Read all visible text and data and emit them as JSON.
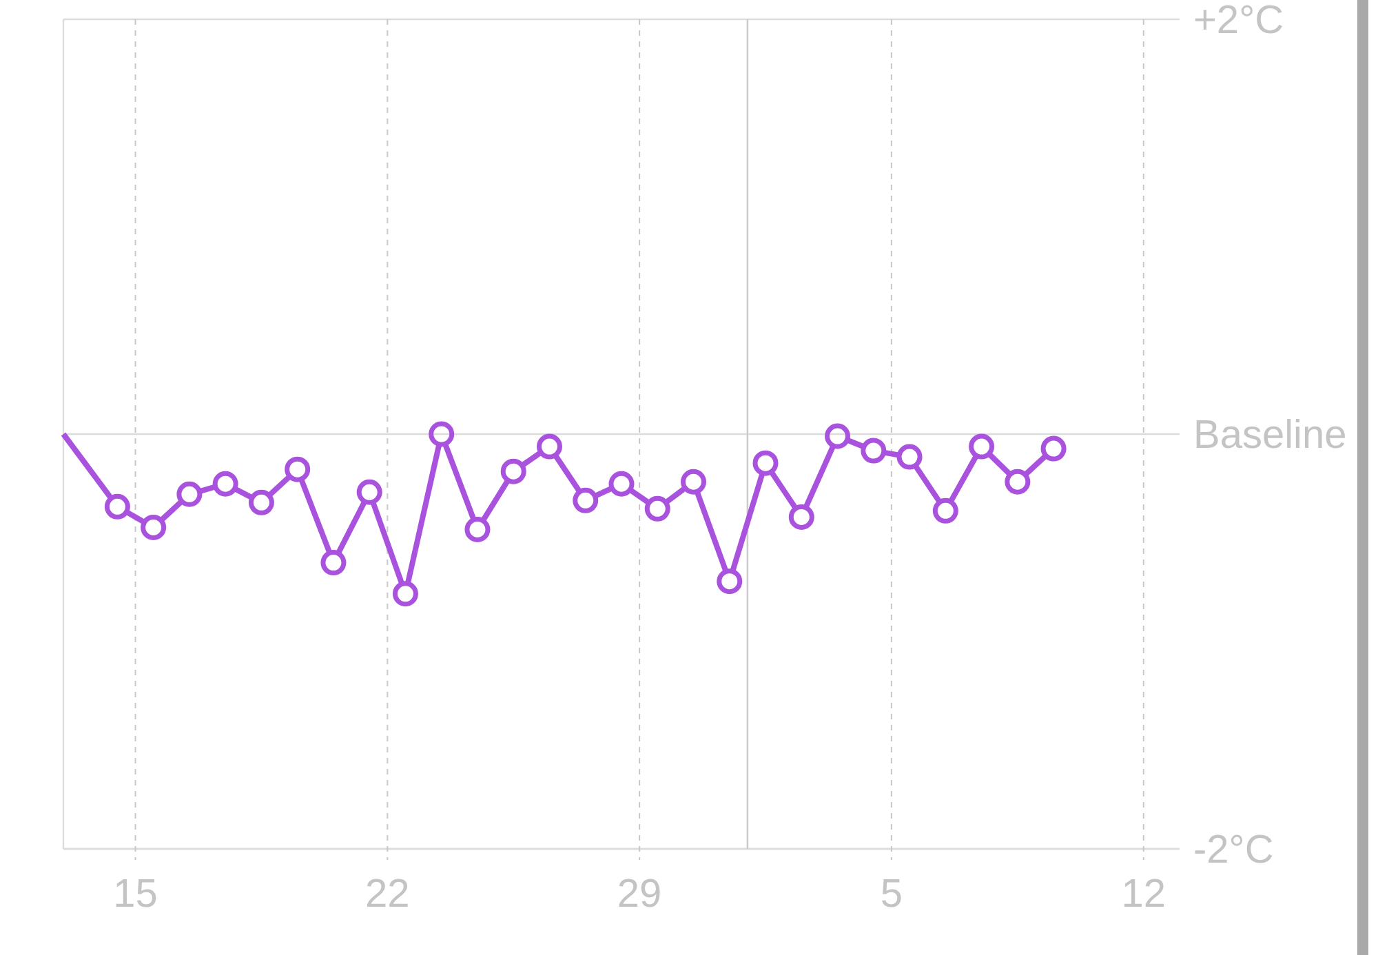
{
  "chart_data": {
    "type": "line",
    "xlim": [
      "--01-13",
      "--02-13"
    ],
    "xticks": [
      {
        "value": "--01-15",
        "label": "15"
      },
      {
        "value": "--01-22",
        "label": "22"
      },
      {
        "value": "--01-29",
        "label": "29"
      },
      {
        "value": "--02-05",
        "label": "5"
      },
      {
        "value": "--02-12",
        "label": "12"
      }
    ],
    "ylim": [
      -2,
      2
    ],
    "yticks": [
      {
        "value": 2,
        "label": "+2°C"
      },
      {
        "value": 0,
        "label": "Baseline"
      },
      {
        "value": -2,
        "label": "-2°C"
      }
    ],
    "grid": true,
    "marker": "circle",
    "line_style": "solid",
    "ref_lines": [
      {
        "axis": "x",
        "value": "--02-01",
        "color": "#cccccc",
        "line_style": "solid"
      }
    ],
    "series": [
      {
        "color": "#a952de",
        "x": [
          "--01-13",
          "--01-14T12:00",
          "--01-15T12:00",
          "--01-16T12:00",
          "--01-17T12:00",
          "--01-18T12:00",
          "--01-19T12:00",
          "--01-20T12:00",
          "--01-21T12:00",
          "--01-22T12:00",
          "--01-23T12:00",
          "--01-24T12:00",
          "--01-25T12:00",
          "--01-26T12:00",
          "--01-27T12:00",
          "--01-28T12:00",
          "--01-29T12:00",
          "--01-30T12:00",
          "--01-31T12:00",
          "--02-01T12:00",
          "--02-02T12:00",
          "--02-03T12:00",
          "--02-04T12:00",
          "--02-05T12:00",
          "--02-06T12:00",
          "--02-07T12:00",
          "--02-08T12:00",
          "--02-09T12:00"
        ],
        "values": [
          0,
          -0.35,
          -0.45,
          -0.29,
          -0.24,
          -0.33,
          -0.17,
          -0.62,
          -0.28,
          -0.77,
          0,
          -0.46,
          -0.18,
          -0.06,
          -0.32,
          -0.24,
          -0.36,
          -0.23,
          -0.71,
          -0.14,
          -0.4,
          -0.01,
          -0.08,
          -0.11,
          -0.37,
          -0.06,
          -0.23,
          -0.07
        ]
      }
    ]
  }
}
